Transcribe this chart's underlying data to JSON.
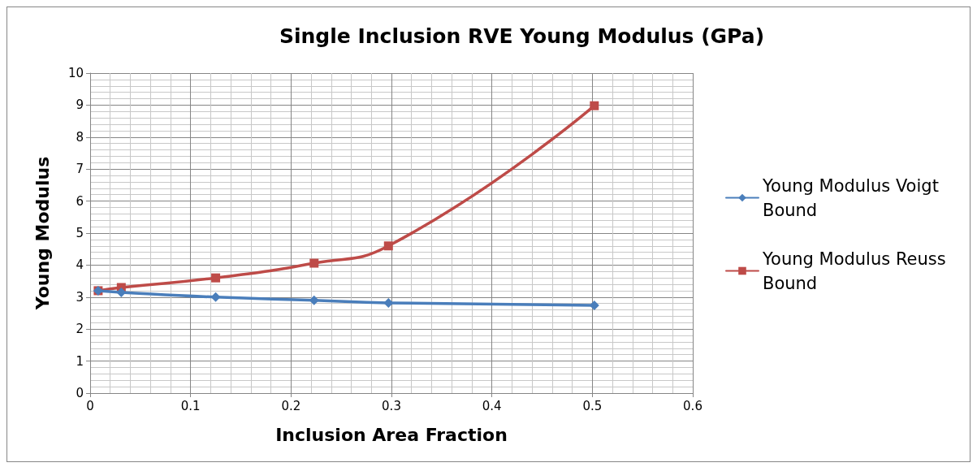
{
  "chart_data": {
    "type": "line",
    "title": "Single Inclusion RVE Young Modulus (GPa)",
    "xlabel": "Inclusion Area Fraction",
    "ylabel": "Young Modulus",
    "xlim": [
      0,
      0.6
    ],
    "xticks": [
      0,
      0.1,
      0.2,
      0.3,
      0.4,
      0.5,
      0.6
    ],
    "ylim": [
      0,
      10
    ],
    "yticks": [
      0,
      1,
      2,
      3,
      4,
      5,
      6,
      7,
      8,
      9,
      10
    ],
    "grid": true,
    "legend": "right",
    "line_style": "solid",
    "series": [
      {
        "name": "Young Modulus Voigt Bound",
        "color": "#4a7ebb",
        "marker": "diamond",
        "x": [
          0.008,
          0.031,
          0.125,
          0.223,
          0.297,
          0.502
        ],
        "values": [
          3.2,
          3.15,
          3.0,
          2.9,
          2.82,
          2.74
        ]
      },
      {
        "name": "Young Modulus Reuss Bound",
        "color": "#be4b48",
        "marker": "square",
        "x": [
          0.008,
          0.031,
          0.125,
          0.223,
          0.297,
          0.502
        ],
        "values": [
          3.2,
          3.3,
          3.6,
          4.06,
          4.6,
          8.98
        ]
      }
    ]
  }
}
